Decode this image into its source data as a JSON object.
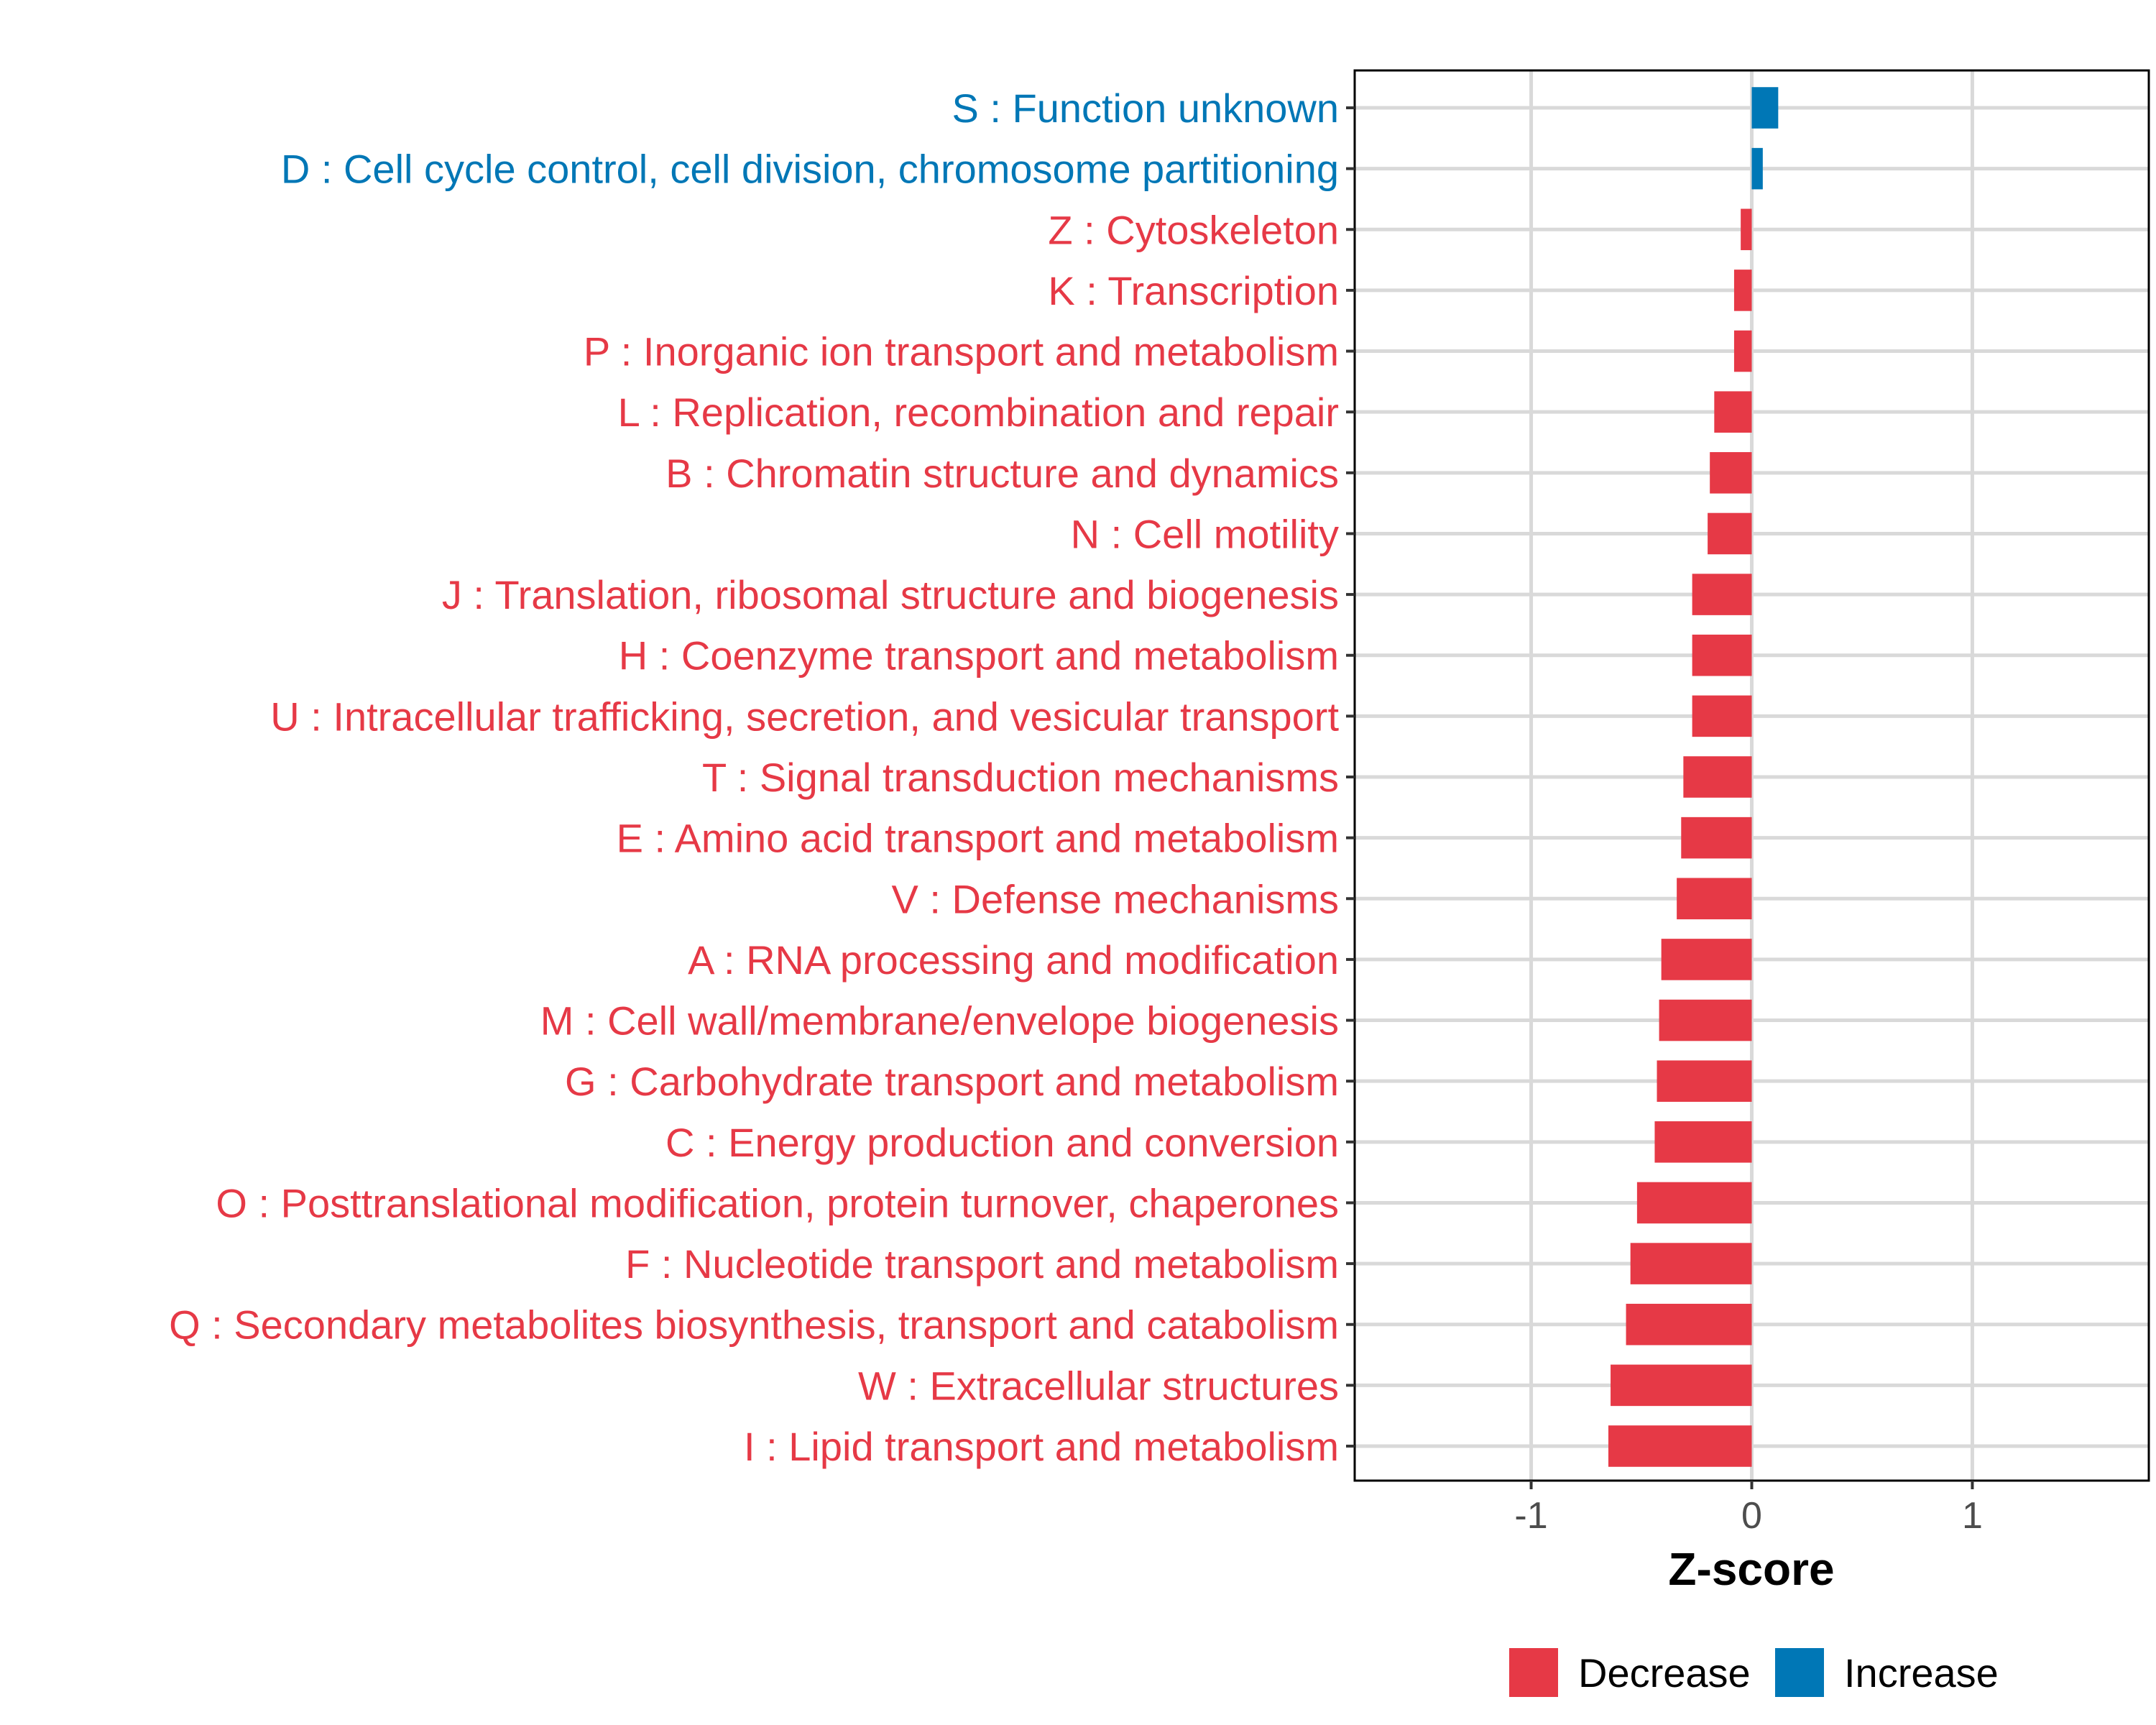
{
  "chart_data": {
    "type": "bar",
    "orientation": "horizontal",
    "xlabel": "Z-score",
    "ylabel": "",
    "title": "",
    "xlim": [
      -1.8,
      1.8
    ],
    "xticks": [
      -1,
      0,
      1
    ],
    "xtick_labels": [
      "-1",
      "0",
      "1"
    ],
    "grid": true,
    "legend_position": "bottom",
    "legend": [
      {
        "label": "Decrease",
        "color": "#E63946"
      },
      {
        "label": "Increase",
        "color": "#0077B6"
      }
    ],
    "categories": [
      "S : Function unknown",
      "D : Cell cycle control, cell division, chromosome partitioning",
      "Z : Cytoskeleton",
      "K : Transcription",
      "P : Inorganic ion transport and metabolism",
      "L : Replication, recombination and repair",
      "B : Chromatin structure and dynamics",
      "N : Cell motility",
      "J : Translation, ribosomal structure and biogenesis",
      "H : Coenzyme transport and metabolism",
      "U : Intracellular trafficking, secretion, and vesicular transport",
      "T : Signal transduction mechanisms",
      "E : Amino acid transport and metabolism",
      "V : Defense mechanisms",
      "A : RNA processing and modification",
      "M : Cell wall/membrane/envelope biogenesis",
      "G : Carbohydrate transport and metabolism",
      "C : Energy production and conversion",
      "O : Posttranslational modification, protein turnover, chaperones",
      "F : Nucleotide transport and metabolism",
      "Q : Secondary metabolites biosynthesis, transport and catabolism",
      "W : Extracellular structures",
      "I : Lipid transport and metabolism"
    ],
    "values": [
      0.12,
      0.05,
      -0.05,
      -0.08,
      -0.08,
      -0.17,
      -0.19,
      -0.2,
      -0.27,
      -0.27,
      -0.27,
      -0.31,
      -0.32,
      -0.34,
      -0.41,
      -0.42,
      -0.43,
      -0.44,
      -0.52,
      -0.55,
      -0.57,
      -0.64,
      -0.65
    ],
    "groups": [
      "Increase",
      "Increase",
      "Decrease",
      "Decrease",
      "Decrease",
      "Decrease",
      "Decrease",
      "Decrease",
      "Decrease",
      "Decrease",
      "Decrease",
      "Decrease",
      "Decrease",
      "Decrease",
      "Decrease",
      "Decrease",
      "Decrease",
      "Decrease",
      "Decrease",
      "Decrease",
      "Decrease",
      "Decrease",
      "Decrease"
    ]
  }
}
